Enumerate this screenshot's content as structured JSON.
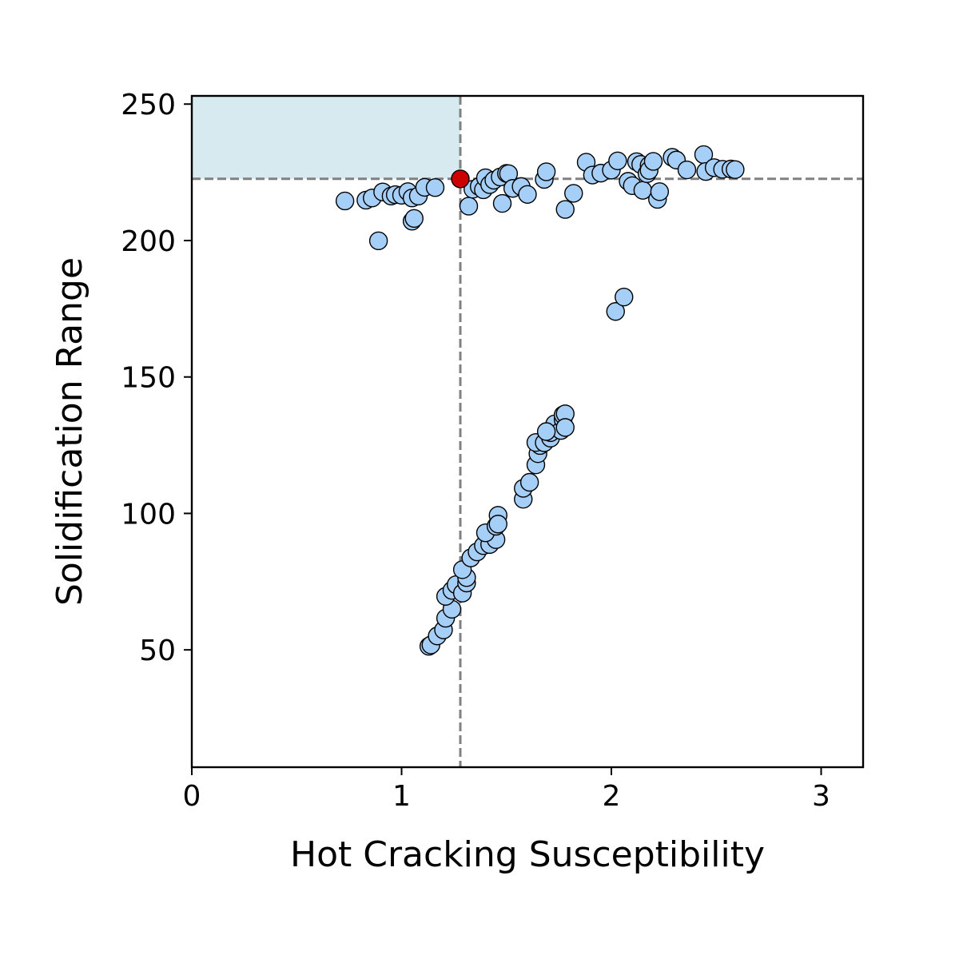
{
  "chart_data": {
    "type": "scatter",
    "title": "",
    "xlabel": "Hot Cracking Susceptibility",
    "ylabel": "Solidification Range",
    "xlim": [
      0,
      3.2
    ],
    "ylim": [
      7,
      253
    ],
    "x_ticks": [
      0,
      1,
      2,
      3
    ],
    "y_ticks": [
      50,
      100,
      150,
      200,
      250
    ],
    "grid": false,
    "legend": "none",
    "colors": {
      "points": "#a6cff7",
      "point_edge": "#000000",
      "highlight": "#cc0000",
      "region": "#d6eaf0",
      "reference_line": "#808080"
    },
    "highlight": {
      "x": 1.28,
      "y": 222.6
    },
    "reference_lines": {
      "x": 1.28,
      "y": 222.6
    },
    "shaded_region": {
      "x": [
        0,
        1.28
      ],
      "y": [
        222.6,
        253
      ]
    },
    "points": [
      [
        0.73,
        214.5
      ],
      [
        0.83,
        214.8
      ],
      [
        0.86,
        215.6
      ],
      [
        0.89,
        199.9
      ],
      [
        0.91,
        217.8
      ],
      [
        0.95,
        216.3
      ],
      [
        0.97,
        216.8
      ],
      [
        1.0,
        216.6
      ],
      [
        1.03,
        217.9
      ],
      [
        1.05,
        215.6
      ],
      [
        1.05,
        207.1
      ],
      [
        1.06,
        208.1
      ],
      [
        1.08,
        216.3
      ],
      [
        1.11,
        219.5
      ],
      [
        1.16,
        219.4
      ],
      [
        1.32,
        212.6
      ],
      [
        1.34,
        218.8
      ],
      [
        1.37,
        219.8
      ],
      [
        1.39,
        218.6
      ],
      [
        1.4,
        223.0
      ],
      [
        1.42,
        220.5
      ],
      [
        1.44,
        222.1
      ],
      [
        1.47,
        223.3
      ],
      [
        1.48,
        213.6
      ],
      [
        1.5,
        224.6
      ],
      [
        1.51,
        224.5
      ],
      [
        1.53,
        219.1
      ],
      [
        1.57,
        219.8
      ],
      [
        1.6,
        216.9
      ],
      [
        1.68,
        222.4
      ],
      [
        1.69,
        225.2
      ],
      [
        1.78,
        211.4
      ],
      [
        1.82,
        217.3
      ],
      [
        1.88,
        228.7
      ],
      [
        1.91,
        224.0
      ],
      [
        1.95,
        224.7
      ],
      [
        2.0,
        225.8
      ],
      [
        2.03,
        229.2
      ],
      [
        2.08,
        221.7
      ],
      [
        2.1,
        220.1
      ],
      [
        2.12,
        228.9
      ],
      [
        2.14,
        227.9
      ],
      [
        2.15,
        218.4
      ],
      [
        2.17,
        224.5
      ],
      [
        2.18,
        227.5
      ],
      [
        2.18,
        225.7
      ],
      [
        2.2,
        229.0
      ],
      [
        2.22,
        215.1
      ],
      [
        2.23,
        217.9
      ],
      [
        2.29,
        230.5
      ],
      [
        2.31,
        229.5
      ],
      [
        2.36,
        225.9
      ],
      [
        2.44,
        231.5
      ],
      [
        2.45,
        225.3
      ],
      [
        2.49,
        226.7
      ],
      [
        2.53,
        226.1
      ],
      [
        2.57,
        226.2
      ],
      [
        2.59,
        226.0
      ],
      [
        2.02,
        174.0
      ],
      [
        2.06,
        179.3
      ],
      [
        1.13,
        51.3
      ],
      [
        1.14,
        51.8
      ],
      [
        1.17,
        55.1
      ],
      [
        1.2,
        57.3
      ],
      [
        1.21,
        61.6
      ],
      [
        1.24,
        64.9
      ],
      [
        1.21,
        69.6
      ],
      [
        1.24,
        71.8
      ],
      [
        1.26,
        73.9
      ],
      [
        1.29,
        70.8
      ],
      [
        1.31,
        74.5
      ],
      [
        1.31,
        76.5
      ],
      [
        1.29,
        79.4
      ],
      [
        1.33,
        83.7
      ],
      [
        1.36,
        85.9
      ],
      [
        1.39,
        88.2
      ],
      [
        1.42,
        88.6
      ],
      [
        1.45,
        90.4
      ],
      [
        1.4,
        92.9
      ],
      [
        1.45,
        95.3
      ],
      [
        1.46,
        99.3
      ],
      [
        1.46,
        96.1
      ],
      [
        1.58,
        105.2
      ],
      [
        1.58,
        109.2
      ],
      [
        1.61,
        111.4
      ],
      [
        1.64,
        117.8
      ],
      [
        1.65,
        121.9
      ],
      [
        1.66,
        124.9
      ],
      [
        1.64,
        126.0
      ],
      [
        1.68,
        125.9
      ],
      [
        1.71,
        127.6
      ],
      [
        1.71,
        129.6
      ],
      [
        1.73,
        132.8
      ],
      [
        1.76,
        130.4
      ],
      [
        1.77,
        134.4
      ],
      [
        1.77,
        136.1
      ],
      [
        1.78,
        136.5
      ],
      [
        1.78,
        131.5
      ],
      [
        1.69,
        130.0
      ]
    ]
  }
}
